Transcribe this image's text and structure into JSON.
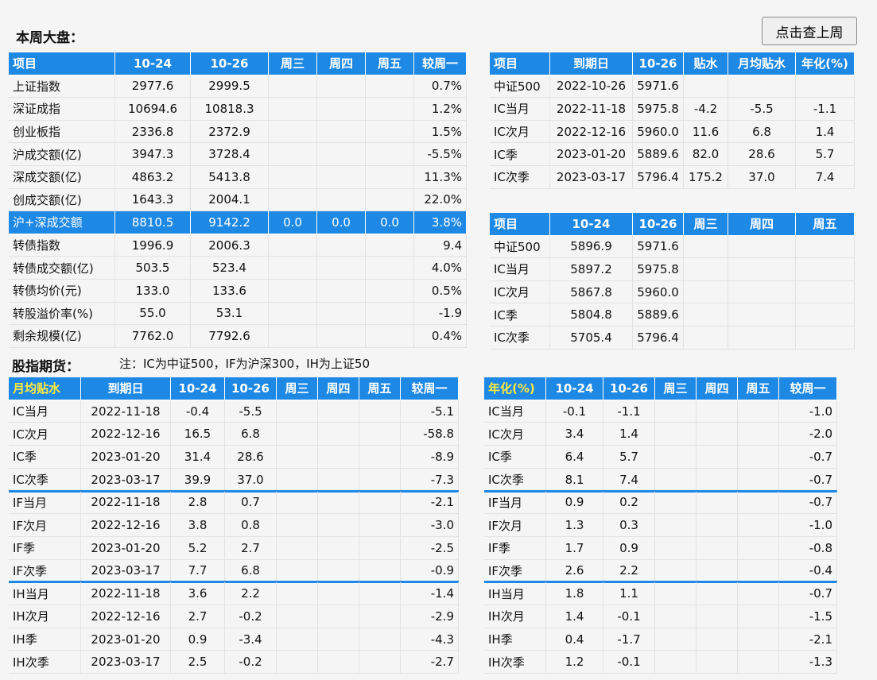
{
  "header": {
    "title": "本周大盘：",
    "button": "点击查上周"
  },
  "weekly_table": {
    "columns": [
      "项目",
      "10-24",
      "10-26",
      "周三",
      "周四",
      "周五",
      "较周一"
    ],
    "rows": [
      [
        "上证指数",
        "2977.6",
        "2999.5",
        null,
        null,
        null,
        "0.7%"
      ],
      [
        "深证成指",
        "10694.6",
        "10818.3",
        null,
        null,
        null,
        "1.2%"
      ],
      [
        "创业板指",
        "2336.8",
        "2372.9",
        null,
        null,
        null,
        "1.5%"
      ],
      [
        "沪成交额(亿)",
        "3947.3",
        "3728.4",
        null,
        null,
        null,
        "-5.5%"
      ],
      [
        "深成交额(亿)",
        "4863.2",
        "5413.8",
        null,
        null,
        null,
        "11.3%"
      ],
      [
        "创成交额(亿)",
        "1643.3",
        "2004.1",
        null,
        null,
        null,
        "22.0%"
      ],
      [
        "沪+深成交额",
        "8810.5",
        "9142.2",
        "0.0",
        "0.0",
        "0.0",
        "3.8%"
      ],
      [
        "转债指数",
        "1996.9",
        "2006.3",
        null,
        null,
        null,
        "9.4"
      ],
      [
        "转债成交额(亿)",
        "503.5",
        "523.4",
        null,
        null,
        null,
        "4.0%"
      ],
      [
        "转债均价(元)",
        "133.0",
        "133.6",
        null,
        null,
        null,
        "0.5%"
      ],
      [
        "转股溢价率(%)",
        "55.0",
        "53.1",
        null,
        null,
        null,
        "-1.9"
      ],
      [
        "剩余规模(亿)",
        "7762.0",
        "7792.6",
        null,
        null,
        null,
        "0.4%"
      ]
    ]
  },
  "ic_basis_table": {
    "columns": [
      "项目",
      "到期日",
      "10-26",
      "贴水",
      "月均贴水",
      "年化(%)"
    ],
    "rows": [
      [
        "中证500",
        "2022-10-26",
        "5971.6",
        null,
        null,
        null
      ],
      [
        "IC当月",
        "2022-11-18",
        "5975.8",
        "-4.2",
        "-5.5",
        "-1.1"
      ],
      [
        "IC次月",
        "2022-12-16",
        "5960.0",
        "11.6",
        "6.8",
        "1.4"
      ],
      [
        "IC季",
        "2023-01-20",
        "5889.6",
        "82.0",
        "28.6",
        "5.7"
      ],
      [
        "IC次季",
        "2023-03-17",
        "5796.4",
        "175.2",
        "37.0",
        "7.4"
      ]
    ]
  },
  "ic_weekly_table": {
    "columns": [
      "项目",
      "10-24",
      "10-26",
      "周三",
      "周四",
      "周五"
    ],
    "rows": [
      [
        "中证500",
        "5896.9",
        "5971.6",
        null,
        null,
        null
      ],
      [
        "IC当月",
        "5897.2",
        "5975.8",
        null,
        null,
        null
      ],
      [
        "IC次月",
        "5867.8",
        "5960.0",
        null,
        null,
        null
      ],
      [
        "IC季",
        "5804.8",
        "5889.6",
        null,
        null,
        null
      ],
      [
        "IC次季",
        "5705.4",
        "5796.4",
        null,
        null,
        null
      ]
    ]
  },
  "futures_section": {
    "title": "股指期货：",
    "note": "注：IC为中证500，IF为沪深300，IH为上证50"
  },
  "discount_table": {
    "columns": [
      "月均贴水",
      "到期日",
      "10-24",
      "10-26",
      "周三",
      "周四",
      "周五",
      "较周一"
    ],
    "rows": [
      [
        "IC当月",
        "2022-11-18",
        "-0.4",
        "-5.5",
        null,
        null,
        null,
        "-5.1"
      ],
      [
        "IC次月",
        "2022-12-16",
        "16.5",
        "6.8",
        null,
        null,
        null,
        "-58.8"
      ],
      [
        "IC季",
        "2023-01-20",
        "31.4",
        "28.6",
        null,
        null,
        null,
        "-8.9"
      ],
      [
        "IC次季",
        "2023-03-17",
        "39.9",
        "37.0",
        null,
        null,
        null,
        "-7.3"
      ],
      [
        "IF当月",
        "2022-11-18",
        "2.8",
        "0.7",
        null,
        null,
        null,
        "-2.1"
      ],
      [
        "IF次月",
        "2022-12-16",
        "3.8",
        "0.8",
        null,
        null,
        null,
        "-3.0"
      ],
      [
        "IF季",
        "2023-01-20",
        "5.2",
        "2.7",
        null,
        null,
        null,
        "-2.5"
      ],
      [
        "IF次季",
        "2023-03-17",
        "7.7",
        "6.8",
        null,
        null,
        null,
        "-0.9"
      ],
      [
        "IH当月",
        "2022-11-18",
        "3.6",
        "2.2",
        null,
        null,
        null,
        "-1.4"
      ],
      [
        "IH次月",
        "2022-12-16",
        "2.7",
        "-0.2",
        null,
        null,
        null,
        "-2.9"
      ],
      [
        "IH季",
        "2023-01-20",
        "0.9",
        "-3.4",
        null,
        null,
        null,
        "-4.3"
      ],
      [
        "IH次季",
        "2023-03-17",
        "2.5",
        "-0.2",
        null,
        null,
        null,
        "-2.7"
      ]
    ]
  },
  "annualized_table": {
    "columns": [
      "年化(%)",
      "10-24",
      "10-26",
      "周三",
      "周四",
      "周五",
      "较周一"
    ],
    "rows": [
      [
        "IC当月",
        "-0.1",
        "-1.1",
        null,
        null,
        null,
        "-1.0"
      ],
      [
        "IC次月",
        "3.4",
        "1.4",
        null,
        null,
        null,
        "-2.0"
      ],
      [
        "IC季",
        "6.4",
        "5.7",
        null,
        null,
        null,
        "-0.7"
      ],
      [
        "IC次季",
        "8.1",
        "7.4",
        null,
        null,
        null,
        "-0.7"
      ],
      [
        "IF当月",
        "0.9",
        "0.2",
        null,
        null,
        null,
        "-0.7"
      ],
      [
        "IF次月",
        "1.3",
        "0.3",
        null,
        null,
        null,
        "-1.0"
      ],
      [
        "IF季",
        "1.7",
        "0.9",
        null,
        null,
        null,
        "-0.8"
      ],
      [
        "IF次季",
        "2.6",
        "2.2",
        null,
        null,
        null,
        "-0.4"
      ],
      [
        "IH当月",
        "1.8",
        "1.1",
        null,
        null,
        null,
        "-0.7"
      ],
      [
        "IH次月",
        "1.4",
        "-0.1",
        null,
        null,
        null,
        "-1.5"
      ],
      [
        "IH季",
        "0.4",
        "-1.7",
        null,
        null,
        null,
        "-2.1"
      ],
      [
        "IH次季",
        "1.2",
        "-0.1",
        null,
        null,
        null,
        "-1.3"
      ]
    ]
  }
}
